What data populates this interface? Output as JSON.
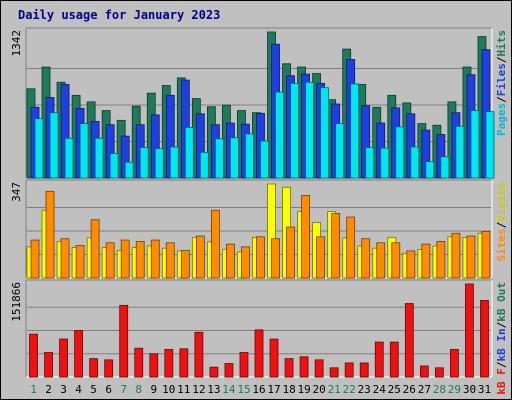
{
  "chart_data": {
    "type": "bar",
    "title": "Daily usage for January 2023",
    "categories": [
      "1",
      "2",
      "3",
      "4",
      "5",
      "6",
      "7",
      "8",
      "9",
      "10",
      "11",
      "12",
      "13",
      "14",
      "15",
      "16",
      "17",
      "18",
      "19",
      "20",
      "21",
      "22",
      "23",
      "24",
      "25",
      "26",
      "27",
      "28",
      "29",
      "30",
      "31"
    ],
    "weekend_days": [
      "1",
      "7",
      "8",
      "14",
      "15",
      "21",
      "22",
      "28",
      "29"
    ],
    "panels": [
      {
        "name": "hits-files-pages",
        "ymax_label": "1342",
        "ymax": 1342,
        "series": [
          {
            "name": "Hits",
            "color": "#1f7a5a",
            "values": [
              820,
              1020,
              880,
              760,
              700,
              620,
              530,
              660,
              780,
              850,
              920,
              730,
              655,
              670,
              620,
              600,
              1342,
              1050,
              1020,
              960,
              720,
              1185,
              860,
              650,
              760,
              690,
              500,
              485,
              700,
              1020,
              1300
            ]
          },
          {
            "name": "Files",
            "color": "#1e40e0",
            "values": [
              650,
              740,
              860,
              640,
              520,
              490,
              385,
              490,
              580,
              760,
              900,
              590,
              490,
              505,
              495,
              595,
              1230,
              940,
              955,
              870,
              680,
              1090,
              665,
              505,
              645,
              590,
              440,
              400,
              600,
              950,
              1180
            ]
          },
          {
            "name": "Pages",
            "color": "#00e5ee",
            "values": [
              545,
              600,
              365,
              500,
              365,
              225,
              145,
              280,
              270,
              285,
              465,
              235,
              360,
              370,
              405,
              340,
              790,
              870,
              880,
              830,
              500,
              865,
              280,
              275,
              470,
              285,
              150,
              195,
              475,
              620,
              610
            ]
          }
        ]
      },
      {
        "name": "visits-sites",
        "ymax_label": "347",
        "ymax": 347,
        "series": [
          {
            "name": "Visits",
            "color": "#ffff00",
            "values": [
              115,
              250,
              135,
              113,
              148,
              112,
              102,
              112,
              118,
              110,
              100,
              150,
              133,
              106,
              96,
              150,
              347,
              335,
              245,
              205,
              245,
              148,
              118,
              110,
              150,
              91,
              105,
              118,
              152,
              150,
              165
            ]
          },
          {
            "name": "Sites",
            "color": "#ff8c00",
            "values": [
              140,
              320,
              145,
              120,
              215,
              130,
              140,
              135,
              140,
              130,
              102,
              155,
              250,
              125,
              115,
              152,
              145,
              188,
              305,
              152,
              238,
              225,
              145,
              130,
              130,
              100,
              125,
              135,
              165,
              155,
              172
            ]
          }
        ]
      },
      {
        "name": "kbytes",
        "ymax_label": "151866",
        "ymax": 151866,
        "series": [
          {
            "name": "KBytes",
            "color": "#ee1111",
            "values": [
              70000,
              40000,
              62000,
              76000,
              30000,
              28000,
              117000,
              47000,
              38000,
              45000,
              46000,
              73000,
              16000,
              22000,
              40000,
              77000,
              62000,
              30000,
              33000,
              28000,
              15000,
              23000,
              23000,
              57000,
              57000,
              120000,
              18000,
              15000,
              45000,
              151866,
              125000
            ]
          }
        ]
      }
    ],
    "legend_top": [
      {
        "text": "Pages",
        "color": "#00bcd4"
      },
      {
        "text": "/",
        "color": "#000000"
      },
      {
        "text": "Files",
        "color": "#1e40e0"
      },
      {
        "text": "/",
        "color": "#000000"
      },
      {
        "text": "Hits",
        "color": "#1f7a5a"
      }
    ],
    "legend_mid": [
      {
        "text": "Sites",
        "color": "#ff8c00"
      },
      {
        "text": "/",
        "color": "#000000"
      },
      {
        "text": "Visits",
        "color": "#cccc00"
      }
    ],
    "legend_bottom": [
      {
        "text": "kB F",
        "color": "#ee1111"
      },
      {
        "text": "/",
        "color": "#000000"
      },
      {
        "text": "kB In",
        "color": "#1e40e0"
      },
      {
        "text": "/",
        "color": "#000000"
      },
      {
        "text": "kB Out",
        "color": "#1f7a5a"
      }
    ]
  }
}
